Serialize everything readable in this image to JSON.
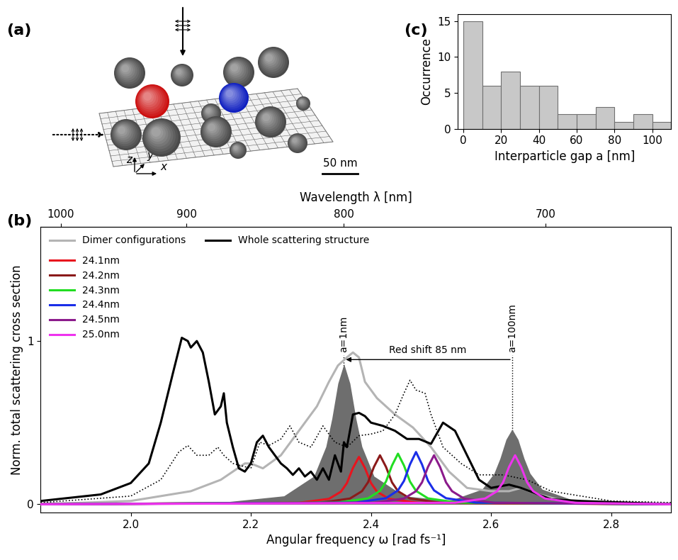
{
  "diagram": {
    "label": "(a)",
    "scale_bar": "50 nm",
    "axes": [
      "x",
      "y",
      "z"
    ]
  },
  "chart_data": [
    {
      "type": "line",
      "title": "(b)",
      "xlabel": "Angular frequency ω [rad fs⁻¹]",
      "ylabel": "Norm. total scattering cross section",
      "x2label": "Wavelength λ [nm]",
      "xlim": [
        1.85,
        2.9
      ],
      "xticks": [
        2.0,
        2.2,
        2.4,
        2.6,
        2.8
      ],
      "x2ticks": [
        1000,
        900,
        800,
        700
      ],
      "ylim": [
        -0.05,
        1.7
      ],
      "yticks": [
        0,
        1
      ],
      "legend": "upper left",
      "annotations": [
        {
          "text": "a=1nm",
          "x": 2.355
        },
        {
          "text": "a=100nm",
          "x": 2.635
        },
        {
          "text": "Red shift 85 nm",
          "from": 2.635,
          "to": 2.355
        }
      ],
      "series": [
        {
          "type": "area",
          "color": "#6e6e6e",
          "x": [
            1.85,
            2.155,
            2.255,
            2.305,
            2.325,
            2.335,
            2.345,
            2.355,
            2.365,
            2.375,
            2.385,
            2.405,
            2.455,
            2.555,
            2.9
          ],
          "values": [
            0,
            0.013,
            0.051,
            0.172,
            0.353,
            0.525,
            0.741,
            0.86,
            0.741,
            0.525,
            0.353,
            0.172,
            0.051,
            0.013,
            0
          ]
        },
        {
          "type": "area",
          "color": "#6e6e6e",
          "x": [
            1.85,
            2.435,
            2.535,
            2.585,
            2.605,
            2.615,
            2.625,
            2.635,
            2.645,
            2.655,
            2.665,
            2.685,
            2.735,
            2.835,
            2.9
          ],
          "values": [
            0,
            0.007,
            0.027,
            0.092,
            0.189,
            0.281,
            0.397,
            0.46,
            0.397,
            0.281,
            0.189,
            0.092,
            0.027,
            0.007,
            0
          ]
        },
        {
          "name": "Dimer configurations",
          "type": "line",
          "color": "#b4b4b4",
          "line_style": "solid",
          "x": [
            1.85,
            2.0,
            2.1,
            2.15,
            2.19,
            2.2,
            2.22,
            2.25,
            2.28,
            2.31,
            2.33,
            2.345,
            2.36,
            2.37,
            2.38,
            2.39,
            2.41,
            2.44,
            2.47,
            2.5,
            2.53,
            2.56,
            2.6,
            2.63,
            2.65,
            2.67,
            2.72,
            2.9
          ],
          "values": [
            0.0,
            0.02,
            0.08,
            0.15,
            0.25,
            0.25,
            0.22,
            0.3,
            0.45,
            0.6,
            0.75,
            0.85,
            0.9,
            0.93,
            0.9,
            0.75,
            0.65,
            0.55,
            0.47,
            0.35,
            0.2,
            0.1,
            0.08,
            0.08,
            0.1,
            0.07,
            0.02,
            0.0
          ]
        },
        {
          "name": "Whole scattering structure",
          "type": "line",
          "color": "#000000",
          "line_style": "solid",
          "x": [
            1.85,
            1.95,
            2.0,
            2.03,
            2.05,
            2.07,
            2.085,
            2.095,
            2.1,
            2.11,
            2.12,
            2.13,
            2.14,
            2.15,
            2.155,
            2.16,
            2.17,
            2.18,
            2.19,
            2.2,
            2.21,
            2.22,
            2.23,
            2.24,
            2.25,
            2.26,
            2.27,
            2.28,
            2.29,
            2.3,
            2.31,
            2.32,
            2.33,
            2.34,
            2.35,
            2.355,
            2.36,
            2.37,
            2.38,
            2.39,
            2.4,
            2.42,
            2.44,
            2.46,
            2.48,
            2.5,
            2.52,
            2.54,
            2.56,
            2.58,
            2.6,
            2.63,
            2.65,
            2.7,
            2.75,
            2.9
          ],
          "values": [
            0.02,
            0.06,
            0.13,
            0.25,
            0.5,
            0.8,
            1.02,
            1.0,
            0.96,
            1.0,
            0.93,
            0.75,
            0.55,
            0.6,
            0.68,
            0.5,
            0.35,
            0.22,
            0.2,
            0.25,
            0.38,
            0.42,
            0.35,
            0.3,
            0.25,
            0.22,
            0.18,
            0.22,
            0.17,
            0.2,
            0.15,
            0.22,
            0.15,
            0.3,
            0.2,
            0.38,
            0.35,
            0.55,
            0.56,
            0.54,
            0.5,
            0.48,
            0.45,
            0.4,
            0.4,
            0.37,
            0.5,
            0.45,
            0.3,
            0.15,
            0.1,
            0.12,
            0.1,
            0.03,
            0.02,
            0.0
          ]
        },
        {
          "type": "line",
          "color": "#000000",
          "line_style": "dotted",
          "x": [
            1.85,
            2.0,
            2.05,
            2.08,
            2.095,
            2.11,
            2.13,
            2.145,
            2.155,
            2.17,
            2.2,
            2.215,
            2.23,
            2.25,
            2.265,
            2.28,
            2.3,
            2.32,
            2.34,
            2.36,
            2.38,
            2.4,
            2.42,
            2.44,
            2.455,
            2.465,
            2.475,
            2.49,
            2.5,
            2.52,
            2.55,
            2.58,
            2.62,
            2.66,
            2.7,
            2.8,
            2.9
          ],
          "values": [
            0.01,
            0.05,
            0.15,
            0.32,
            0.36,
            0.3,
            0.3,
            0.35,
            0.3,
            0.25,
            0.22,
            0.38,
            0.36,
            0.4,
            0.48,
            0.38,
            0.35,
            0.48,
            0.38,
            0.35,
            0.42,
            0.43,
            0.45,
            0.55,
            0.68,
            0.76,
            0.7,
            0.68,
            0.55,
            0.35,
            0.25,
            0.18,
            0.18,
            0.15,
            0.08,
            0.02,
            0.01
          ]
        },
        {
          "name": "24.1nm",
          "type": "line",
          "color": "#e8141e",
          "line_style": "solid",
          "x": [
            1.85,
            2.28,
            2.33,
            2.35,
            2.36,
            2.37,
            2.38,
            2.39,
            2.4,
            2.41,
            2.43,
            2.48,
            2.9
          ],
          "values": [
            0,
            0.009,
            0.033,
            0.077,
            0.13,
            0.222,
            0.29,
            0.222,
            0.13,
            0.077,
            0.033,
            0.009,
            0
          ]
        },
        {
          "name": "24.2nm",
          "type": "line",
          "color": "#8b1a1a",
          "line_style": "solid",
          "x": [
            1.85,
            2.315,
            2.365,
            2.385,
            2.395,
            2.405,
            2.415,
            2.425,
            2.435,
            2.445,
            2.465,
            2.515,
            2.9
          ],
          "values": [
            0,
            0.009,
            0.035,
            0.08,
            0.134,
            0.229,
            0.3,
            0.229,
            0.134,
            0.08,
            0.035,
            0.009,
            0
          ]
        },
        {
          "name": "24.3nm",
          "type": "line",
          "color": "#22dd22",
          "line_style": "solid",
          "x": [
            1.85,
            2.345,
            2.395,
            2.415,
            2.425,
            2.435,
            2.445,
            2.455,
            2.465,
            2.475,
            2.495,
            2.545,
            2.9
          ],
          "values": [
            0,
            0.01,
            0.036,
            0.082,
            0.139,
            0.237,
            0.31,
            0.237,
            0.139,
            0.082,
            0.036,
            0.01,
            0
          ]
        },
        {
          "name": "24.4nm",
          "type": "line",
          "color": "#1a2ee8",
          "line_style": "solid",
          "x": [
            1.85,
            2.375,
            2.425,
            2.445,
            2.455,
            2.465,
            2.475,
            2.485,
            2.495,
            2.505,
            2.525,
            2.575,
            2.9
          ],
          "values": [
            0,
            0.01,
            0.037,
            0.085,
            0.143,
            0.244,
            0.32,
            0.244,
            0.143,
            0.085,
            0.037,
            0.01,
            0
          ]
        },
        {
          "name": "24.5nm",
          "type": "line",
          "color": "#8b1a8b",
          "line_style": "solid",
          "x": [
            1.85,
            2.405,
            2.455,
            2.475,
            2.485,
            2.495,
            2.505,
            2.515,
            2.525,
            2.535,
            2.555,
            2.605,
            2.9
          ],
          "values": [
            0,
            0.009,
            0.035,
            0.08,
            0.134,
            0.229,
            0.3,
            0.229,
            0.134,
            0.08,
            0.035,
            0.009,
            0
          ]
        },
        {
          "name": "25.0nm",
          "type": "line",
          "color": "#ee33ee",
          "line_style": "solid",
          "x": [
            1.85,
            2.54,
            2.59,
            2.61,
            2.62,
            2.63,
            2.64,
            2.65,
            2.66,
            2.67,
            2.69,
            2.74,
            2.9
          ],
          "values": [
            0,
            0.009,
            0.035,
            0.08,
            0.134,
            0.229,
            0.3,
            0.229,
            0.134,
            0.08,
            0.035,
            0.009,
            0
          ]
        }
      ]
    },
    {
      "type": "histogram",
      "title": "(c)",
      "xlabel": "Interparticle gap a [nm]",
      "ylabel": "Occurrence",
      "bins": [
        0,
        10,
        20,
        30,
        40,
        50,
        60,
        70,
        80,
        90,
        100,
        110
      ],
      "counts": [
        15,
        6,
        8,
        6,
        6,
        2,
        2,
        3,
        1,
        2,
        1
      ],
      "color": "#c8c8c8",
      "xlim": [
        -3,
        110
      ],
      "xticks": [
        0,
        20,
        40,
        60,
        80,
        100
      ],
      "ylim": [
        0,
        16
      ],
      "yticks": [
        0,
        5,
        10,
        15
      ]
    }
  ]
}
